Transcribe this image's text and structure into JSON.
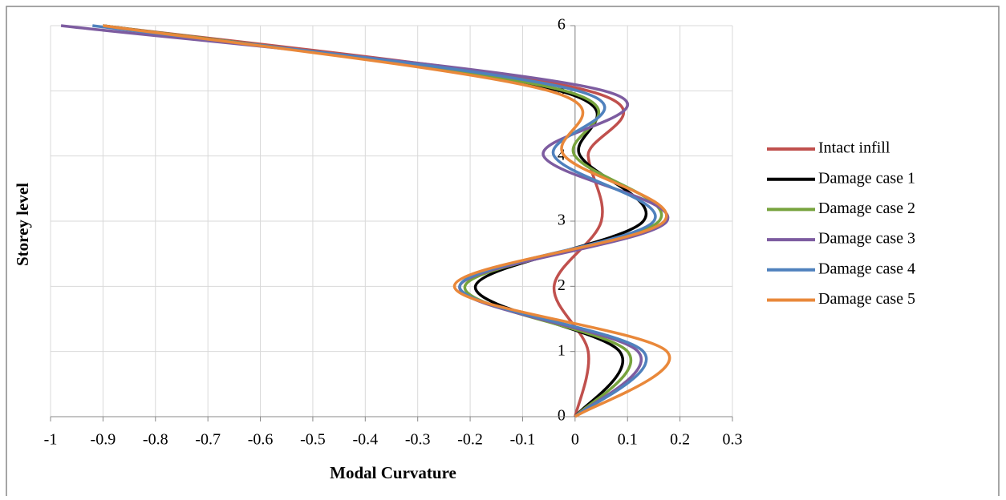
{
  "chart_data": {
    "type": "line",
    "xlabel": "Modal Curvature",
    "ylabel": "Storey level",
    "y": [
      0,
      1,
      2,
      3,
      4,
      5,
      6
    ],
    "xlim": [
      -1,
      0.3
    ],
    "xticks": [
      -1,
      -0.9,
      -0.8,
      -0.7,
      -0.6,
      -0.5,
      -0.4,
      -0.3,
      -0.2,
      -0.1,
      0,
      0.1,
      0.2,
      0.3
    ],
    "ylim": [
      0,
      6
    ],
    "yticks": [
      0,
      1,
      2,
      3,
      4,
      5,
      6
    ],
    "grid": true,
    "smooth": true,
    "legend": "right",
    "series": [
      {
        "name": "Intact infill",
        "color": "#c0504d",
        "values": [
          0,
          0.025,
          -0.04,
          0.05,
          0.025,
          0.025,
          -0.9
        ]
      },
      {
        "name": "Damage case 1",
        "color": "#000000",
        "values": [
          0,
          0.085,
          -0.19,
          0.13,
          0.01,
          -0.03,
          -0.9
        ]
      },
      {
        "name": "Damage case 2",
        "color": "#77a33d",
        "values": [
          0,
          0.1,
          -0.21,
          0.16,
          0.0,
          -0.02,
          -0.9
        ]
      },
      {
        "name": "Damage case 3",
        "color": "#7d5ca0",
        "values": [
          0,
          0.12,
          -0.22,
          0.175,
          -0.06,
          0.055,
          -0.98
        ]
      },
      {
        "name": "Damage case 4",
        "color": "#4f81bd",
        "values": [
          0,
          0.13,
          -0.22,
          0.15,
          -0.04,
          0.005,
          -0.92
        ]
      },
      {
        "name": "Damage case 5",
        "color": "#e9883a",
        "values": [
          0,
          0.175,
          -0.23,
          0.17,
          -0.02,
          -0.05,
          -0.9
        ]
      }
    ]
  }
}
